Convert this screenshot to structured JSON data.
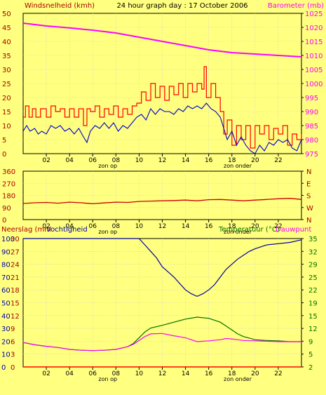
{
  "title": "24 hour graph day : 17 October 2006",
  "colors": {
    "background": "#ffff80",
    "frame": "#000000",
    "grid": "#c8c8c8",
    "wind_gust": "#ff0000",
    "wind_avg": "#0000cc",
    "barometer": "#ff00ff",
    "direction": "#cc0000",
    "humidity": "#0000a0",
    "temperature": "#007000",
    "dewpoint": "#ff00ff",
    "rain": "#ff0000",
    "left_axis_text": "#aa0000",
    "right_axis_text": "#007000"
  },
  "chart_data": [
    {
      "type": "line",
      "name": "wind",
      "left_label": "Windsnelheid (kmh)",
      "right_label": "Barometer (mb)",
      "y_ticks": [
        "0",
        "5",
        "10",
        "15",
        "20",
        "25",
        "30",
        "35",
        "40",
        "45",
        "50"
      ],
      "y2_ticks": [
        "975",
        "980",
        "985",
        "990",
        "995",
        "1000",
        "1005",
        "1010",
        "1015",
        "1020",
        "1025"
      ],
      "ylim": [
        0,
        50
      ],
      "y2lim": [
        975,
        1025
      ],
      "xlim": [
        0,
        24
      ],
      "x_ticks": [
        "02",
        "04",
        "06",
        "08",
        "10",
        "12",
        "14",
        "16",
        "18",
        "20",
        "22"
      ],
      "annotations": [
        {
          "text": "zon op",
          "x": 7.3
        },
        {
          "text": "zon onder",
          "x": 18.5
        }
      ],
      "series": [
        {
          "name": "gust",
          "axis": "left",
          "x": [
            0,
            0.2,
            0.5,
            0.8,
            1.1,
            1.5,
            2,
            2.4,
            2.8,
            3.2,
            3.6,
            4,
            4.4,
            4.8,
            5.2,
            5.5,
            5.8,
            6.2,
            6.6,
            7,
            7.4,
            7.8,
            8.2,
            8.6,
            9,
            9.4,
            9.8,
            10.2,
            10.6,
            11,
            11.4,
            11.8,
            12.2,
            12.6,
            13,
            13.4,
            13.8,
            14.2,
            14.6,
            15,
            15.4,
            15.6,
            15.8,
            16.2,
            16.6,
            17,
            17.3,
            17.6,
            18,
            18.4,
            18.8,
            19.2,
            19.6,
            20,
            20.4,
            20.8,
            21.2,
            21.6,
            22,
            22.4,
            22.8,
            23.2,
            23.6,
            24
          ],
          "values": [
            13,
            17,
            13,
            16,
            13,
            16,
            13,
            17,
            15,
            16,
            13,
            16,
            13,
            16,
            10,
            16,
            15,
            17,
            13,
            16,
            14,
            17,
            13,
            16,
            14,
            17,
            18,
            22,
            19,
            25,
            20,
            24,
            19,
            24,
            21,
            25,
            20,
            25,
            22,
            25,
            23,
            31,
            20,
            25,
            20,
            15,
            7,
            12,
            3,
            10,
            5,
            10,
            2,
            10,
            7,
            10,
            5,
            9,
            7,
            10,
            3,
            7,
            5,
            7
          ]
        },
        {
          "name": "average",
          "axis": "left",
          "x": [
            0,
            0.3,
            0.6,
            1,
            1.3,
            1.6,
            2,
            2.4,
            2.8,
            3.2,
            3.6,
            4,
            4.4,
            4.8,
            5.2,
            5.5,
            5.8,
            6.2,
            6.6,
            7,
            7.4,
            7.8,
            8.2,
            8.6,
            9,
            9.4,
            9.8,
            10.2,
            10.6,
            11,
            11.4,
            11.8,
            12.2,
            12.6,
            13,
            13.4,
            13.8,
            14.2,
            14.6,
            15,
            15.4,
            15.8,
            16.2,
            16.6,
            17,
            17.3,
            17.6,
            18,
            18.4,
            18.8,
            19.2,
            19.6,
            20,
            20.4,
            20.8,
            21.2,
            21.6,
            22,
            22.4,
            22.8,
            23.2,
            23.6,
            24
          ],
          "values": [
            8,
            10,
            8,
            9,
            7,
            8,
            7,
            10,
            9,
            10,
            8,
            9,
            7,
            9,
            6,
            4,
            8,
            10,
            9,
            11,
            9,
            11,
            8,
            10,
            9,
            11,
            13,
            14,
            12,
            16,
            14,
            16,
            15,
            15,
            14,
            16,
            15,
            17,
            16,
            17,
            16,
            18,
            16,
            15,
            13,
            9,
            5,
            8,
            3,
            6,
            3,
            1,
            0,
            3,
            1,
            4,
            3,
            5,
            4,
            5,
            2,
            1,
            5
          ]
        },
        {
          "name": "barometer",
          "axis": "right",
          "x": [
            0,
            1,
            2,
            4,
            6,
            8,
            10,
            12,
            14,
            16,
            18,
            20,
            22,
            24
          ],
          "values": [
            1021.5,
            1021,
            1020.5,
            1019.8,
            1019,
            1018,
            1016.5,
            1015,
            1013.5,
            1012,
            1011,
            1010.5,
            1010,
            1009.5
          ]
        }
      ]
    },
    {
      "type": "line",
      "name": "direction",
      "y_ticks": [
        "0",
        "90",
        "180",
        "270",
        "360"
      ],
      "y2_ticks": [
        "N",
        "W",
        "S",
        "E",
        "N"
      ],
      "ylim": [
        0,
        360
      ],
      "xlim": [
        0,
        24
      ],
      "x_ticks": [
        "02",
        "04",
        "06",
        "08",
        "10",
        "12",
        "14",
        "16",
        "18",
        "20",
        "22"
      ],
      "annotations": [
        {
          "text": "zon op",
          "x": 7.3
        },
        {
          "text": "zon onder",
          "x": 18.5
        }
      ],
      "series": [
        {
          "name": "direction",
          "x": [
            0,
            1,
            2,
            3,
            4,
            5,
            6,
            7,
            8,
            9,
            10,
            11,
            12,
            13,
            14,
            15,
            16,
            17,
            18,
            19,
            20,
            21,
            22,
            23,
            24
          ],
          "values": [
            120,
            125,
            128,
            122,
            130,
            125,
            118,
            124,
            130,
            128,
            135,
            138,
            140,
            142,
            145,
            140,
            148,
            150,
            145,
            140,
            145,
            150,
            155,
            158,
            150
          ]
        }
      ]
    },
    {
      "type": "line",
      "name": "temperature",
      "left_label": "Neerslag (mm",
      "left_label2": "Vochtigheid",
      "right_label": "Temperatuur (°C)",
      "right_label2": "Dauwpunt",
      "y_ticks_rain": [
        "0",
        "3",
        "6",
        "9",
        "12",
        "15",
        "18",
        "21",
        "24",
        "27",
        "30"
      ],
      "y_ticks_humidity": [
        "0",
        "10",
        "20",
        "30",
        "40",
        "50",
        "60",
        "70",
        "80",
        "90",
        "100"
      ],
      "y2_ticks": [
        "2",
        "5",
        "9",
        "12",
        "15",
        "19",
        "22",
        "25",
        "29",
        "32",
        "35"
      ],
      "ylim": [
        0,
        100
      ],
      "y2lim": [
        2,
        35
      ],
      "xlim": [
        0,
        24
      ],
      "x_ticks": [
        "02",
        "04",
        "06",
        "08",
        "10",
        "12",
        "14",
        "16",
        "18",
        "20",
        "22"
      ],
      "annotations": [
        {
          "text": "zon op",
          "x": 7.3
        },
        {
          "text": "zon onder",
          "x": 18.5
        }
      ],
      "series": [
        {
          "name": "humidity",
          "axis": "left",
          "x": [
            0,
            2,
            4,
            6,
            8,
            10,
            10.5,
            11,
            11.5,
            12,
            12.5,
            13,
            13.5,
            14,
            14.5,
            15,
            15.5,
            16,
            16.5,
            17,
            17.5,
            18,
            18.5,
            19,
            19.5,
            20,
            21,
            22,
            23,
            24
          ],
          "values": [
            100,
            100,
            100,
            100,
            100,
            100,
            95,
            90,
            85,
            78,
            74,
            70,
            65,
            60,
            57,
            55,
            57,
            60,
            64,
            70,
            76,
            80,
            84,
            87,
            90,
            92,
            95,
            96,
            97,
            99
          ]
        },
        {
          "name": "temperature",
          "axis": "right",
          "x": [
            0,
            1,
            2,
            3,
            4,
            5,
            6,
            7,
            8,
            9,
            9.5,
            10,
            10.5,
            11,
            12,
            13,
            14,
            15,
            16,
            17,
            17.5,
            18,
            18.5,
            19,
            20,
            21,
            22,
            23,
            24
          ],
          "values": [
            8.3,
            7.7,
            7.3,
            7,
            6.5,
            6.3,
            6.2,
            6.3,
            6.5,
            7.2,
            8,
            9.5,
            11,
            12,
            12.7,
            13.5,
            14.3,
            14.8,
            14.5,
            13.5,
            12.5,
            11.5,
            10.5,
            9.8,
            9,
            8.8,
            8.7,
            8.5,
            8.5
          ]
        },
        {
          "name": "dewpoint",
          "axis": "right",
          "x": [
            0,
            1,
            2,
            3,
            4,
            5,
            6,
            7,
            8,
            9,
            9.5,
            10,
            10.5,
            11,
            12,
            13,
            14,
            15,
            16,
            17,
            17.5,
            18,
            18.5,
            19,
            20,
            21,
            22,
            23,
            24
          ],
          "values": [
            8.3,
            7.7,
            7.3,
            7,
            6.5,
            6.3,
            6.2,
            6.3,
            6.5,
            7.2,
            7.8,
            8.8,
            9.8,
            10.5,
            10.6,
            10.0,
            9.5,
            8.5,
            8.7,
            9,
            9.3,
            9.2,
            9,
            8.8,
            8.7,
            8.6,
            8.5,
            8.5,
            8.5
          ]
        },
        {
          "name": "rain",
          "axis": "left",
          "x": [
            0,
            24
          ],
          "values": [
            0,
            0
          ]
        }
      ]
    }
  ]
}
